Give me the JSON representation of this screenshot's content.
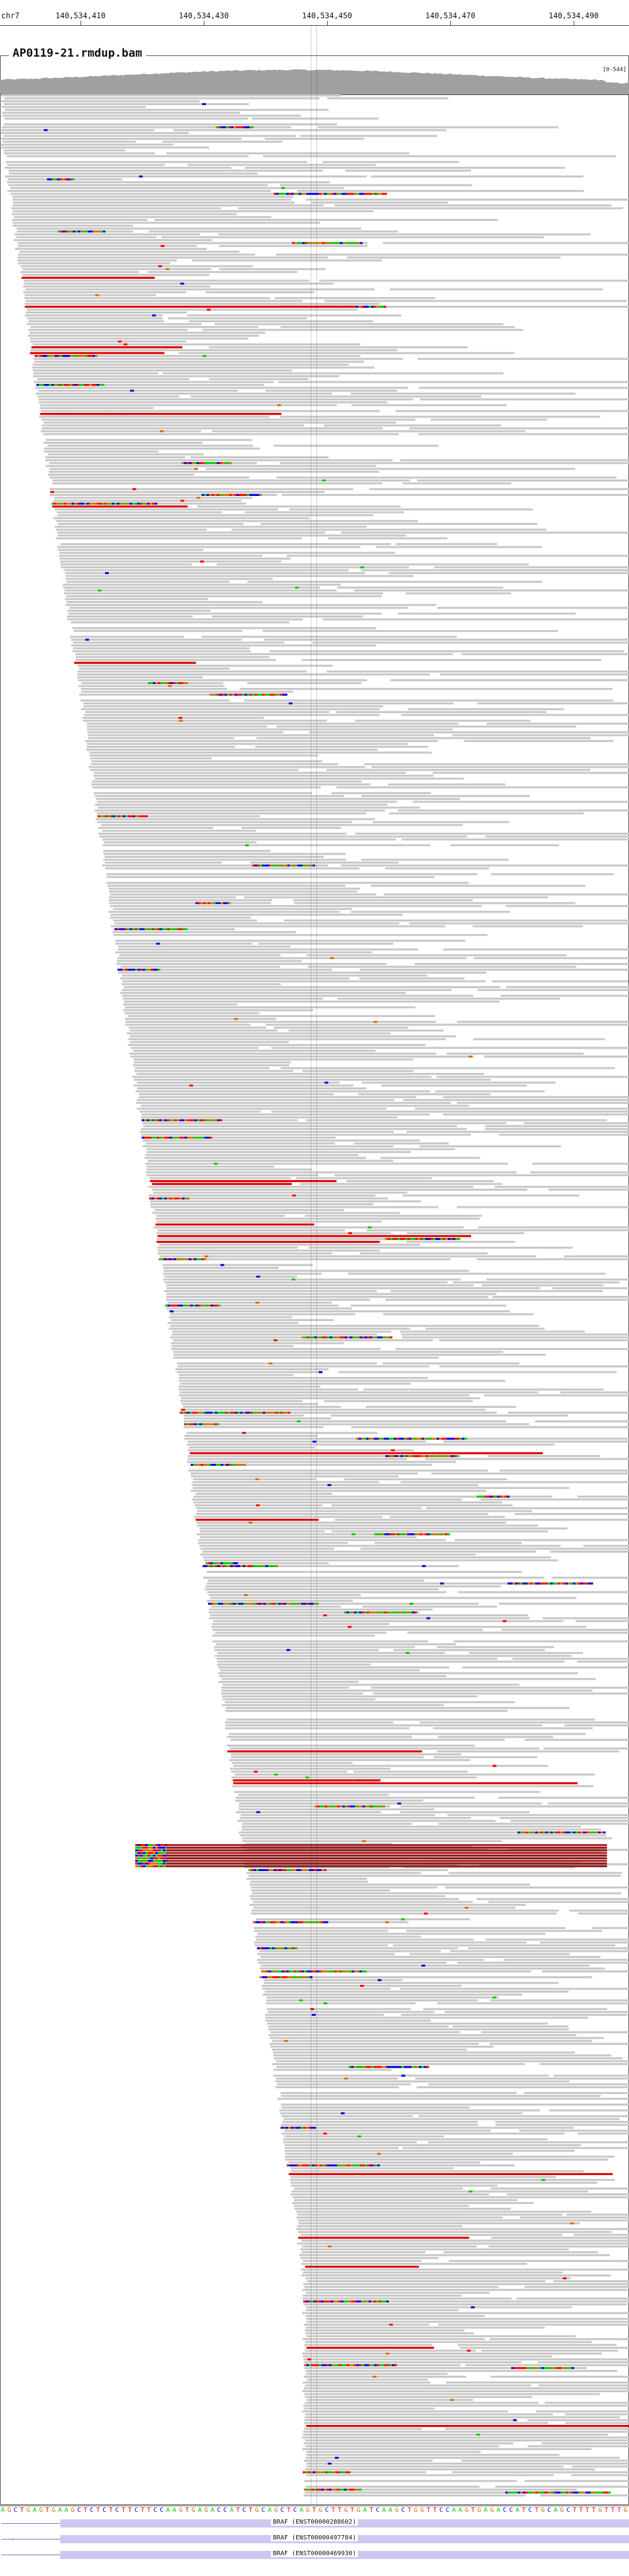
{
  "ruler": {
    "chrom": "chr7",
    "ticks": [
      {
        "label": "140,534,410"
      },
      {
        "label": "140,534,430"
      },
      {
        "label": "140,534,450"
      },
      {
        "label": "140,534,470"
      },
      {
        "label": "140,534,490"
      }
    ]
  },
  "bam_track": {
    "name": "AP0119-21.rmdup.bam",
    "coverage_range": "[0-544]"
  },
  "sequence": "AGCTGAGTGAAGCTCTCTCTTCTTCCAAGTGAGACCATCTGCAGCTCAGTGCTTGTGATCAAGCTGGTTCCAAGTGAGACCATCTGCAGCTTTTGTTTG",
  "genes": [
    {
      "name": "BRAF (ENST00000288602)",
      "feature_colors": {
        "line": "#6f74c8",
        "exon": "#cbc9f0"
      }
    },
    {
      "name": "BRAF (ENST00000497784)"
    },
    {
      "name": "BRAF (ENST00000469930)"
    }
  ],
  "colors": {
    "read": "#c8c8c8",
    "read_dark": "#9a9a9a",
    "mismatch_A": "#00c800",
    "mismatch_C": "#0000e0",
    "mismatch_G": "#d17105",
    "mismatch_T": "#ff0000",
    "insert_red": "#e00000",
    "coverage": "#a0a0a0"
  }
}
